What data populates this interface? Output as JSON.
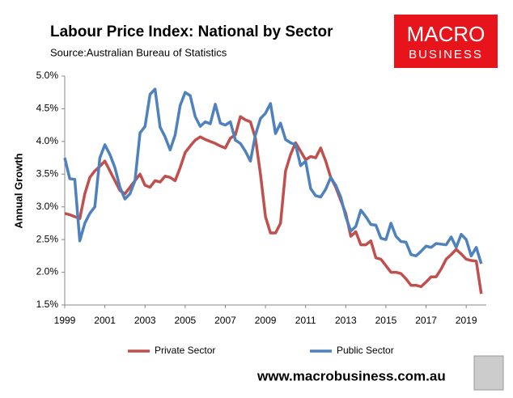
{
  "chart_data": {
    "type": "line",
    "title": "Labour Price Index: National by Sector",
    "subtitle": "Source:Australian Bureau of Statistics",
    "y_label": "Annual Growth",
    "x": [
      1999,
      1999.25,
      1999.5,
      1999.75,
      2000,
      2000.25,
      2000.5,
      2000.75,
      2001,
      2001.25,
      2001.5,
      2001.75,
      2002,
      2002.25,
      2002.5,
      2002.75,
      2003,
      2003.25,
      2003.5,
      2003.75,
      2004,
      2004.25,
      2004.5,
      2004.75,
      2005,
      2005.25,
      2005.5,
      2005.75,
      2006,
      2006.25,
      2006.5,
      2006.75,
      2007,
      2007.25,
      2007.5,
      2007.75,
      2008,
      2008.25,
      2008.5,
      2008.75,
      2009,
      2009.25,
      2009.5,
      2009.75,
      2010,
      2010.25,
      2010.5,
      2010.75,
      2011,
      2011.25,
      2011.5,
      2011.75,
      2012,
      2012.25,
      2012.5,
      2012.75,
      2013,
      2013.25,
      2013.5,
      2013.75,
      2014,
      2014.25,
      2014.5,
      2014.75,
      2015,
      2015.25,
      2015.5,
      2015.75,
      2016,
      2016.25,
      2016.5,
      2016.75,
      2017,
      2017.25,
      2017.5,
      2017.75,
      2018,
      2018.25,
      2018.5,
      2018.75,
      2019,
      2019.25,
      2019.5,
      2019.75
    ],
    "series": [
      {
        "name": "Private Sector",
        "color": "#c0504d",
        "values": [
          2.9,
          2.88,
          2.85,
          2.82,
          3.2,
          3.45,
          3.55,
          3.62,
          3.7,
          3.55,
          3.4,
          3.25,
          3.2,
          3.3,
          3.4,
          3.5,
          3.33,
          3.3,
          3.4,
          3.38,
          3.47,
          3.45,
          3.4,
          3.6,
          3.83,
          3.93,
          4.02,
          4.07,
          4.03,
          4.0,
          3.97,
          3.93,
          3.9,
          4.05,
          4.1,
          4.38,
          4.33,
          4.3,
          4.05,
          3.5,
          2.85,
          2.6,
          2.6,
          2.75,
          3.55,
          3.8,
          3.98,
          3.85,
          3.72,
          3.77,
          3.75,
          3.9,
          3.7,
          3.45,
          3.3,
          3.1,
          2.9,
          2.55,
          2.62,
          2.42,
          2.42,
          2.48,
          2.22,
          2.2,
          2.1,
          2.0,
          2.0,
          1.98,
          1.9,
          1.8,
          1.8,
          1.78,
          1.85,
          1.93,
          1.93,
          2.05,
          2.2,
          2.27,
          2.35,
          2.28,
          2.2,
          2.18,
          2.17,
          1.67
        ]
      },
      {
        "name": "Public Sector",
        "color": "#4f81bd",
        "values": [
          3.75,
          3.43,
          3.42,
          2.48,
          2.75,
          2.9,
          3.0,
          3.75,
          3.95,
          3.8,
          3.6,
          3.3,
          3.12,
          3.2,
          3.4,
          4.13,
          4.23,
          4.72,
          4.8,
          4.22,
          4.07,
          3.87,
          4.1,
          4.55,
          4.75,
          4.7,
          4.38,
          4.23,
          4.3,
          4.27,
          4.57,
          4.28,
          4.25,
          4.3,
          4.02,
          3.97,
          3.85,
          3.7,
          4.1,
          4.35,
          4.43,
          4.58,
          4.12,
          4.28,
          4.03,
          3.98,
          3.95,
          3.63,
          3.7,
          3.28,
          3.17,
          3.15,
          3.27,
          3.45,
          3.33,
          3.15,
          2.85,
          2.63,
          2.7,
          2.95,
          2.85,
          2.73,
          2.72,
          2.52,
          2.5,
          2.75,
          2.55,
          2.47,
          2.46,
          2.27,
          2.25,
          2.32,
          2.4,
          2.38,
          2.44,
          2.43,
          2.42,
          2.54,
          2.38,
          2.58,
          2.5,
          2.25,
          2.38,
          2.13
        ]
      }
    ],
    "xlim": [
      1999,
      2020
    ],
    "xticks": [
      1999,
      2001,
      2003,
      2005,
      2007,
      2009,
      2011,
      2013,
      2015,
      2017,
      2019
    ],
    "ylim": [
      1.5,
      5.0
    ],
    "yticks": [
      {
        "value": 1.5,
        "label": "1.5%"
      },
      {
        "value": 2.0,
        "label": "2.0%"
      },
      {
        "value": 2.5,
        "label": "2.5%"
      },
      {
        "value": 3.0,
        "label": "3.0%"
      },
      {
        "value": 3.5,
        "label": "3.5%"
      },
      {
        "value": 4.0,
        "label": "4.0%"
      },
      {
        "value": 4.5,
        "label": "4.5%"
      },
      {
        "value": 5.0,
        "label": "5.0%"
      }
    ],
    "grid": false,
    "legend": "bottom"
  },
  "logo": {
    "line1": "MACRO",
    "line2": "BUSINESS"
  },
  "footer": {
    "url": "www.macrobusiness.com.au"
  }
}
